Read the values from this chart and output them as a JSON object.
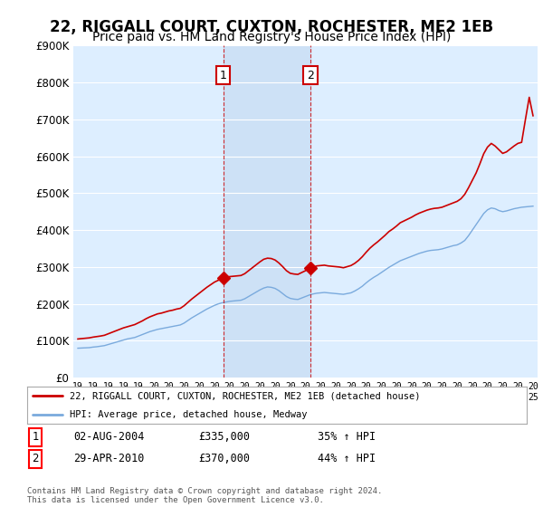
{
  "title": "22, RIGGALL COURT, CUXTON, ROCHESTER, ME2 1EB",
  "subtitle": "Price paid vs. HM Land Registry's House Price Index (HPI)",
  "title_fontsize": 12,
  "subtitle_fontsize": 10,
  "ylim": [
    0,
    900000
  ],
  "yticks": [
    0,
    100000,
    200000,
    300000,
    400000,
    500000,
    600000,
    700000,
    800000,
    900000
  ],
  "ytick_labels": [
    "£0",
    "£100K",
    "£200K",
    "£300K",
    "£400K",
    "£500K",
    "£600K",
    "£700K",
    "£800K",
    "£900K"
  ],
  "background_color": "#ffffff",
  "plot_bg_color": "#ddeeff",
  "shade_color": "#cce0f5",
  "grid_color": "#ffffff",
  "red_line_color": "#cc0000",
  "blue_line_color": "#7aaadd",
  "sale1_date": 2004.58,
  "sale1_price": 335000,
  "sale1_label": "1",
  "sale2_date": 2010.33,
  "sale2_price": 370000,
  "sale2_label": "2",
  "legend1": "22, RIGGALL COURT, CUXTON, ROCHESTER, ME2 1EB (detached house)",
  "legend2": "HPI: Average price, detached house, Medway",
  "ann1_date": "02-AUG-2004",
  "ann1_price": "£335,000",
  "ann1_hpi": "35% ↑ HPI",
  "ann2_date": "29-APR-2010",
  "ann2_price": "£370,000",
  "ann2_hpi": "44% ↑ HPI",
  "footer": "Contains HM Land Registry data © Crown copyright and database right 2024.\nThis data is licensed under the Open Government Licence v3.0.",
  "hpi_years": [
    1995.0,
    1995.25,
    1995.5,
    1995.75,
    1996.0,
    1996.25,
    1996.5,
    1996.75,
    1997.0,
    1997.25,
    1997.5,
    1997.75,
    1998.0,
    1998.25,
    1998.5,
    1998.75,
    1999.0,
    1999.25,
    1999.5,
    1999.75,
    2000.0,
    2000.25,
    2000.5,
    2000.75,
    2001.0,
    2001.25,
    2001.5,
    2001.75,
    2002.0,
    2002.25,
    2002.5,
    2002.75,
    2003.0,
    2003.25,
    2003.5,
    2003.75,
    2004.0,
    2004.25,
    2004.5,
    2004.75,
    2005.0,
    2005.25,
    2005.5,
    2005.75,
    2006.0,
    2006.25,
    2006.5,
    2006.75,
    2007.0,
    2007.25,
    2007.5,
    2007.75,
    2008.0,
    2008.25,
    2008.5,
    2008.75,
    2009.0,
    2009.25,
    2009.5,
    2009.75,
    2010.0,
    2010.25,
    2010.5,
    2010.75,
    2011.0,
    2011.25,
    2011.5,
    2011.75,
    2012.0,
    2012.25,
    2012.5,
    2012.75,
    2013.0,
    2013.25,
    2013.5,
    2013.75,
    2014.0,
    2014.25,
    2014.5,
    2014.75,
    2015.0,
    2015.25,
    2015.5,
    2015.75,
    2016.0,
    2016.25,
    2016.5,
    2016.75,
    2017.0,
    2017.25,
    2017.5,
    2017.75,
    2018.0,
    2018.25,
    2018.5,
    2018.75,
    2019.0,
    2019.25,
    2019.5,
    2019.75,
    2020.0,
    2020.25,
    2020.5,
    2020.75,
    2021.0,
    2021.25,
    2021.5,
    2021.75,
    2022.0,
    2022.25,
    2022.5,
    2022.75,
    2023.0,
    2023.25,
    2023.5,
    2023.75,
    2024.0,
    2024.25,
    2024.5,
    2024.75,
    2025.0
  ],
  "hpi_values": [
    80000,
    80500,
    81000,
    81500,
    83000,
    84000,
    85500,
    87000,
    90000,
    93000,
    96000,
    99000,
    102000,
    105000,
    107000,
    109000,
    113000,
    117000,
    121000,
    125000,
    128000,
    131000,
    133000,
    135000,
    137000,
    139000,
    141000,
    143000,
    148000,
    155000,
    162000,
    168000,
    174000,
    180000,
    186000,
    191000,
    196000,
    200000,
    203000,
    205000,
    207000,
    208000,
    209000,
    210000,
    214000,
    220000,
    226000,
    232000,
    238000,
    243000,
    246000,
    245000,
    242000,
    236000,
    228000,
    220000,
    215000,
    213000,
    212000,
    216000,
    220000,
    224000,
    227000,
    229000,
    230000,
    231000,
    230000,
    229000,
    228000,
    227000,
    226000,
    228000,
    230000,
    235000,
    241000,
    248000,
    257000,
    265000,
    272000,
    278000,
    285000,
    292000,
    299000,
    305000,
    311000,
    317000,
    321000,
    325000,
    329000,
    333000,
    337000,
    340000,
    343000,
    345000,
    346000,
    347000,
    349000,
    352000,
    355000,
    358000,
    360000,
    365000,
    372000,
    385000,
    400000,
    415000,
    430000,
    445000,
    455000,
    460000,
    458000,
    453000,
    450000,
    452000,
    455000,
    458000,
    460000,
    462000,
    463000,
    464000,
    465000
  ],
  "red_years": [
    1995.0,
    1995.25,
    1995.5,
    1995.75,
    1996.0,
    1996.25,
    1996.5,
    1996.75,
    1997.0,
    1997.25,
    1997.5,
    1997.75,
    1998.0,
    1998.25,
    1998.5,
    1998.75,
    1999.0,
    1999.25,
    1999.5,
    1999.75,
    2000.0,
    2000.25,
    2000.5,
    2000.75,
    2001.0,
    2001.25,
    2001.5,
    2001.75,
    2002.0,
    2002.25,
    2002.5,
    2002.75,
    2003.0,
    2003.25,
    2003.5,
    2003.75,
    2004.0,
    2004.25,
    2004.5,
    2004.75,
    2005.0,
    2005.25,
    2005.5,
    2005.75,
    2006.0,
    2006.25,
    2006.5,
    2006.75,
    2007.0,
    2007.25,
    2007.5,
    2007.75,
    2008.0,
    2008.25,
    2008.5,
    2008.75,
    2009.0,
    2009.25,
    2009.5,
    2009.75,
    2010.0,
    2010.25,
    2010.5,
    2010.75,
    2011.0,
    2011.25,
    2011.5,
    2011.75,
    2012.0,
    2012.25,
    2012.5,
    2012.75,
    2013.0,
    2013.25,
    2013.5,
    2013.75,
    2014.0,
    2014.25,
    2014.5,
    2014.75,
    2015.0,
    2015.25,
    2015.5,
    2015.75,
    2016.0,
    2016.25,
    2016.5,
    2016.75,
    2017.0,
    2017.25,
    2017.5,
    2017.75,
    2018.0,
    2018.25,
    2018.5,
    2018.75,
    2019.0,
    2019.25,
    2019.5,
    2019.75,
    2020.0,
    2020.25,
    2020.5,
    2020.75,
    2021.0,
    2021.25,
    2021.5,
    2021.75,
    2022.0,
    2022.25,
    2022.5,
    2022.75,
    2023.0,
    2023.25,
    2023.5,
    2023.75,
    2024.0,
    2024.25,
    2024.5,
    2024.75,
    2025.0
  ],
  "red_values": [
    105000,
    106000,
    107000,
    108000,
    110000,
    111500,
    113000,
    115000,
    119000,
    123000,
    127000,
    131000,
    135000,
    138000,
    141000,
    144000,
    149000,
    154000,
    160000,
    165000,
    169000,
    173000,
    175000,
    178000,
    181000,
    183000,
    186000,
    188000,
    195000,
    204000,
    213000,
    221000,
    229000,
    237000,
    245000,
    252000,
    259000,
    264000,
    268000,
    272000,
    274000,
    275000,
    276000,
    277000,
    282000,
    290000,
    298000,
    306000,
    314000,
    321000,
    324000,
    323000,
    319000,
    311000,
    301000,
    290000,
    283000,
    281000,
    280000,
    285000,
    290000,
    296000,
    299000,
    303000,
    304000,
    305000,
    303000,
    302000,
    301000,
    300000,
    298000,
    301000,
    304000,
    310000,
    318000,
    328000,
    340000,
    351000,
    360000,
    368000,
    377000,
    386000,
    396000,
    403000,
    411000,
    420000,
    425000,
    430000,
    435000,
    441000,
    446000,
    450000,
    454000,
    457000,
    459000,
    460000,
    462000,
    466000,
    470000,
    474000,
    478000,
    485000,
    497000,
    515000,
    535000,
    555000,
    580000,
    607000,
    625000,
    635000,
    628000,
    618000,
    608000,
    612000,
    620000,
    628000,
    635000,
    638000,
    700000,
    760000,
    710000
  ]
}
